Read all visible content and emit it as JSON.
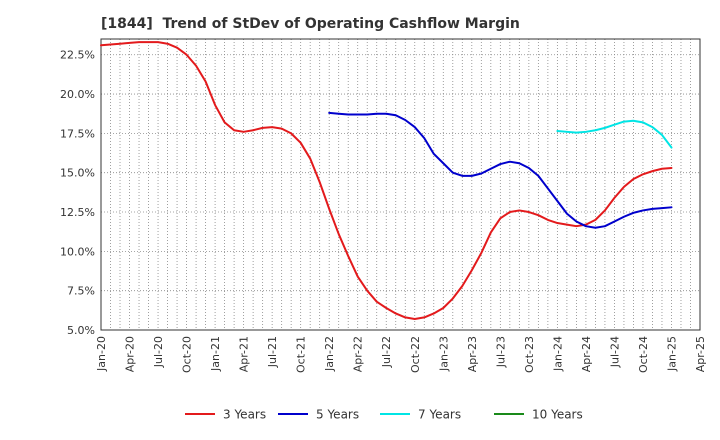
{
  "chart_data": {
    "type": "line",
    "title": "[1844]  Trend of StDev of Operating Cashflow Margin",
    "xlabel": "",
    "ylabel": "",
    "x_ticks": [
      "Jan-20",
      "Apr-20",
      "Jul-20",
      "Oct-20",
      "Jan-21",
      "Apr-21",
      "Jul-21",
      "Oct-21",
      "Jan-22",
      "Apr-22",
      "Jul-22",
      "Oct-22",
      "Jan-23",
      "Apr-23",
      "Jul-23",
      "Oct-23",
      "Jan-24",
      "Apr-24",
      "Jul-24",
      "Oct-24",
      "Jan-25",
      "Apr-25"
    ],
    "y_ticks": [
      "5.0%",
      "7.5%",
      "10.0%",
      "12.5%",
      "15.0%",
      "17.5%",
      "20.0%",
      "22.5%"
    ],
    "ylim": [
      5.0,
      23.5
    ],
    "x_range": [
      "Jan-20",
      "Apr-25"
    ],
    "grid": true,
    "legend_position": "bottom",
    "series": [
      {
        "name": "3 Years",
        "color": "#e31a1c",
        "points": [
          [
            "Jan-20",
            23.1
          ],
          [
            "Feb-20",
            23.15
          ],
          [
            "Mar-20",
            23.2
          ],
          [
            "Apr-20",
            23.25
          ],
          [
            "May-20",
            23.3
          ],
          [
            "Jun-20",
            23.3
          ],
          [
            "Jul-20",
            23.3
          ],
          [
            "Aug-20",
            23.2
          ],
          [
            "Sep-20",
            22.95
          ],
          [
            "Oct-20",
            22.5
          ],
          [
            "Nov-20",
            21.8
          ],
          [
            "Dec-20",
            20.8
          ],
          [
            "Jan-21",
            19.3
          ],
          [
            "Feb-21",
            18.2
          ],
          [
            "Mar-21",
            17.7
          ],
          [
            "Apr-21",
            17.6
          ],
          [
            "May-21",
            17.7
          ],
          [
            "Jun-21",
            17.85
          ],
          [
            "Jul-21",
            17.9
          ],
          [
            "Aug-21",
            17.8
          ],
          [
            "Sep-21",
            17.5
          ],
          [
            "Oct-21",
            16.9
          ],
          [
            "Nov-21",
            15.9
          ],
          [
            "Dec-21",
            14.4
          ],
          [
            "Jan-22",
            12.7
          ],
          [
            "Feb-22",
            11.1
          ],
          [
            "Mar-22",
            9.7
          ],
          [
            "Apr-22",
            8.4
          ],
          [
            "May-22",
            7.5
          ],
          [
            "Jun-22",
            6.8
          ],
          [
            "Jul-22",
            6.4
          ],
          [
            "Aug-22",
            6.05
          ],
          [
            "Sep-22",
            5.8
          ],
          [
            "Oct-22",
            5.7
          ],
          [
            "Nov-22",
            5.8
          ],
          [
            "Dec-22",
            6.05
          ],
          [
            "Jan-23",
            6.4
          ],
          [
            "Feb-23",
            7.0
          ],
          [
            "Mar-23",
            7.8
          ],
          [
            "Apr-23",
            8.8
          ],
          [
            "May-23",
            9.9
          ],
          [
            "Jun-23",
            11.2
          ],
          [
            "Jul-23",
            12.1
          ],
          [
            "Aug-23",
            12.5
          ],
          [
            "Sep-23",
            12.6
          ],
          [
            "Oct-23",
            12.5
          ],
          [
            "Nov-23",
            12.3
          ],
          [
            "Dec-23",
            12.0
          ],
          [
            "Jan-24",
            11.8
          ],
          [
            "Feb-24",
            11.7
          ],
          [
            "Mar-24",
            11.6
          ],
          [
            "Apr-24",
            11.7
          ],
          [
            "May-24",
            12.0
          ],
          [
            "Jun-24",
            12.6
          ],
          [
            "Jul-24",
            13.4
          ],
          [
            "Aug-24",
            14.1
          ],
          [
            "Sep-24",
            14.6
          ],
          [
            "Oct-24",
            14.9
          ],
          [
            "Nov-24",
            15.1
          ],
          [
            "Dec-24",
            15.25
          ],
          [
            "Jan-25",
            15.3
          ]
        ]
      },
      {
        "name": "5 Years",
        "color": "#0000cc",
        "points": [
          [
            "Jan-22",
            18.8
          ],
          [
            "Feb-22",
            18.75
          ],
          [
            "Mar-22",
            18.7
          ],
          [
            "Apr-22",
            18.7
          ],
          [
            "May-22",
            18.7
          ],
          [
            "Jun-22",
            18.75
          ],
          [
            "Jul-22",
            18.75
          ],
          [
            "Aug-22",
            18.65
          ],
          [
            "Sep-22",
            18.35
          ],
          [
            "Oct-22",
            17.9
          ],
          [
            "Nov-22",
            17.2
          ],
          [
            "Dec-22",
            16.2
          ],
          [
            "Jan-23",
            15.6
          ],
          [
            "Feb-23",
            15.0
          ],
          [
            "Mar-23",
            14.8
          ],
          [
            "Apr-23",
            14.8
          ],
          [
            "May-23",
            14.95
          ],
          [
            "Jun-23",
            15.25
          ],
          [
            "Jul-23",
            15.55
          ],
          [
            "Aug-23",
            15.7
          ],
          [
            "Sep-23",
            15.6
          ],
          [
            "Oct-23",
            15.3
          ],
          [
            "Nov-23",
            14.8
          ],
          [
            "Dec-23",
            14.0
          ],
          [
            "Jan-24",
            13.2
          ],
          [
            "Feb-24",
            12.4
          ],
          [
            "Mar-24",
            11.9
          ],
          [
            "Apr-24",
            11.6
          ],
          [
            "May-24",
            11.5
          ],
          [
            "Jun-24",
            11.6
          ],
          [
            "Jul-24",
            11.9
          ],
          [
            "Aug-24",
            12.2
          ],
          [
            "Sep-24",
            12.45
          ],
          [
            "Oct-24",
            12.6
          ],
          [
            "Nov-24",
            12.7
          ],
          [
            "Dec-24",
            12.75
          ],
          [
            "Jan-25",
            12.8
          ]
        ]
      },
      {
        "name": "7 Years",
        "color": "#00e5e5",
        "points": [
          [
            "Jan-24",
            17.65
          ],
          [
            "Feb-24",
            17.6
          ],
          [
            "Mar-24",
            17.55
          ],
          [
            "Apr-24",
            17.6
          ],
          [
            "May-24",
            17.7
          ],
          [
            "Jun-24",
            17.85
          ],
          [
            "Jul-24",
            18.05
          ],
          [
            "Aug-24",
            18.25
          ],
          [
            "Sep-24",
            18.3
          ],
          [
            "Oct-24",
            18.2
          ],
          [
            "Nov-24",
            17.9
          ],
          [
            "Dec-24",
            17.4
          ],
          [
            "Jan-25",
            16.6
          ]
        ]
      },
      {
        "name": "10 Years",
        "color": "#1a8a1a",
        "points": []
      }
    ]
  }
}
